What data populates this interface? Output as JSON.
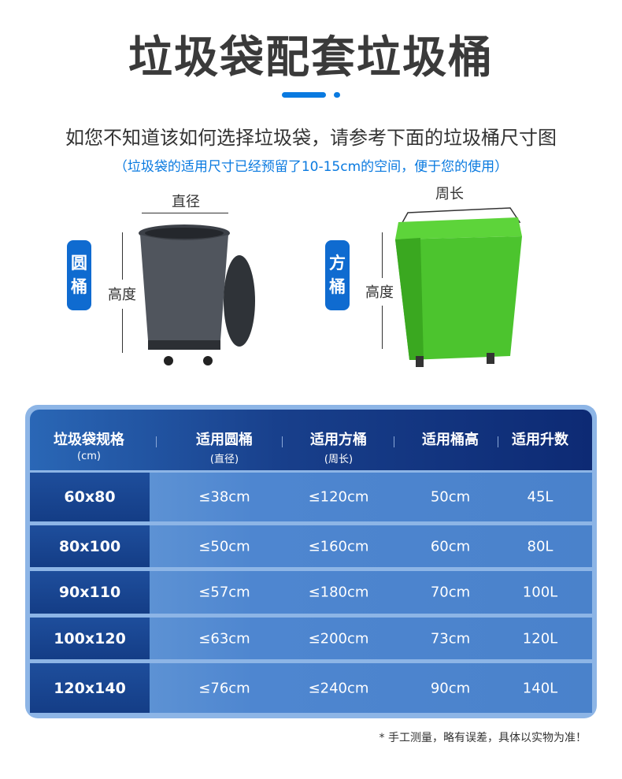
{
  "title": "垃圾袋配套垃圾桶",
  "subtitle": "如您不知道该如何选择垃圾袋，请参考下面的垃圾桶尺寸图",
  "note": "（垃圾袋的适用尺寸已经预留了10-15cm的空间，便于您的使用）",
  "round": {
    "badge": "圆桶",
    "diameter": "直径",
    "height": "高度"
  },
  "square": {
    "badge": "方桶",
    "perimeter": "周长",
    "height": "高度"
  },
  "table": {
    "headers": [
      {
        "label": "垃圾袋规格",
        "sub": "(cm)"
      },
      {
        "label": "适用圆桶",
        "sub": "(直径)"
      },
      {
        "label": "适用方桶",
        "sub": "(周长)"
      },
      {
        "label": "适用桶高",
        "sub": ""
      },
      {
        "label": "适用升数",
        "sub": ""
      }
    ],
    "rows": [
      [
        "60x80",
        "≤38cm",
        "≤120cm",
        "50cm",
        "45L"
      ],
      [
        "80x100",
        "≤50cm",
        "≤160cm",
        "60cm",
        "80L"
      ],
      [
        "90x110",
        "≤57cm",
        "≤180cm",
        "70cm",
        "100L"
      ],
      [
        "100x120",
        "≤63cm",
        "≤200cm",
        "73cm",
        "120L"
      ],
      [
        "120x140",
        "≤76cm",
        "≤240cm",
        "90cm",
        "140L"
      ]
    ]
  },
  "footnote": "* 手工测量，略有误差，具体以实物为准！",
  "colors": {
    "accent": "#0a7ae0",
    "header": "#0d2a74",
    "row": "#4a82cb",
    "round_bin": "#4a4e55",
    "square_bin": "#4cc42e"
  }
}
